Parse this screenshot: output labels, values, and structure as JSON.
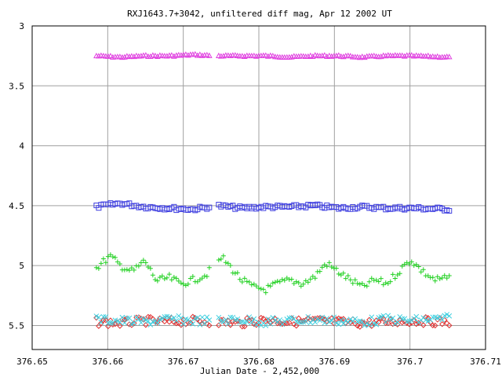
{
  "chart_data": {
    "type": "scatter",
    "title": "RXJ1643.7+3042, unfiltered diff mag, Apr 12 2002 UT",
    "xlabel": "Julian Date - 2,452,000",
    "ylabel": "",
    "xlim": [
      376.65,
      376.71
    ],
    "ylim": [
      3,
      5.7
    ],
    "y_inverted": true,
    "grid": true,
    "legend": "none",
    "x_ticks": [
      376.65,
      376.66,
      376.67,
      376.68,
      376.69,
      376.7,
      376.71
    ],
    "x_tick_labels": [
      "376.65",
      "376.66",
      "376.67",
      "376.68",
      "376.69",
      "376.7",
      "376.71"
    ],
    "y_ticks": [
      3,
      3.5,
      4,
      4.5,
      5,
      5.5
    ],
    "y_tick_labels": [
      "3",
      "3.5",
      "4",
      "4.5",
      "5",
      "5.5"
    ],
    "x_start": 376.6585,
    "x_end": 376.7052,
    "gaps": [
      [
        376.6735,
        376.6745
      ]
    ],
    "series": [
      {
        "color": "#e040e0",
        "marker": "triangle",
        "x": [
          376.6585,
          376.6617,
          376.6649,
          376.6681,
          376.6713,
          376.6745,
          376.6777,
          376.6809,
          376.6841,
          376.6873,
          376.6905,
          376.6937,
          376.6969,
          376.7001,
          376.7052
        ],
        "y": [
          3.25,
          3.26,
          3.25,
          3.25,
          3.24,
          3.25,
          3.25,
          3.25,
          3.26,
          3.25,
          3.25,
          3.26,
          3.25,
          3.25,
          3.26
        ]
      },
      {
        "color": "#4040e0",
        "marker": "square",
        "x": [
          376.6585,
          376.6617,
          376.6649,
          376.6681,
          376.6713,
          376.6745,
          376.6777,
          376.6809,
          376.6841,
          376.6873,
          376.6905,
          376.6937,
          376.6969,
          376.7001,
          376.7052
        ],
        "y": [
          4.51,
          4.48,
          4.51,
          4.52,
          4.53,
          4.5,
          4.52,
          4.51,
          4.51,
          4.5,
          4.52,
          4.51,
          4.52,
          4.52,
          4.53
        ]
      },
      {
        "color": "#20d020",
        "marker": "plus",
        "x": [
          376.6585,
          376.6603,
          376.6617,
          376.6633,
          376.6649,
          376.6665,
          376.6681,
          376.6697,
          376.6713,
          376.6729,
          376.6745,
          376.6751,
          376.6761,
          376.6777,
          376.6793,
          376.6809,
          376.6825,
          376.6841,
          376.6857,
          376.6873,
          376.6889,
          376.6905,
          376.6921,
          376.6937,
          376.6953,
          376.6969,
          376.6985,
          376.7001,
          376.7017,
          376.7033,
          376.7052
        ],
        "y": [
          5.02,
          4.92,
          5.0,
          5.05,
          4.96,
          5.13,
          5.1,
          5.15,
          5.12,
          5.08,
          4.98,
          4.93,
          5.0,
          5.12,
          5.18,
          5.2,
          5.15,
          5.12,
          5.15,
          5.1,
          4.98,
          5.05,
          5.12,
          5.18,
          5.12,
          5.15,
          5.05,
          4.95,
          5.05,
          5.12,
          5.1
        ]
      },
      {
        "color": "#e03030",
        "marker": "diamond",
        "x": [
          376.6585,
          376.6617,
          376.6649,
          376.6681,
          376.6713,
          376.6745,
          376.6777,
          376.6809,
          376.6841,
          376.6873,
          376.6905,
          376.6937,
          376.6969,
          376.7001,
          376.7052
        ],
        "y": [
          5.47,
          5.48,
          5.46,
          5.47,
          5.46,
          5.47,
          5.48,
          5.45,
          5.47,
          5.46,
          5.47,
          5.48,
          5.47,
          5.46,
          5.47
        ]
      },
      {
        "color": "#40d0e0",
        "marker": "x",
        "x": [
          376.6585,
          376.6617,
          376.6649,
          376.6681,
          376.6713,
          376.6745,
          376.6777,
          376.6809,
          376.6841,
          376.6873,
          376.6905,
          376.6937,
          376.6969,
          376.7001,
          376.7052
        ],
        "y": [
          5.45,
          5.46,
          5.47,
          5.45,
          5.46,
          5.46,
          5.45,
          5.47,
          5.46,
          5.45,
          5.46,
          5.47,
          5.45,
          5.46,
          5.44
        ]
      }
    ]
  }
}
